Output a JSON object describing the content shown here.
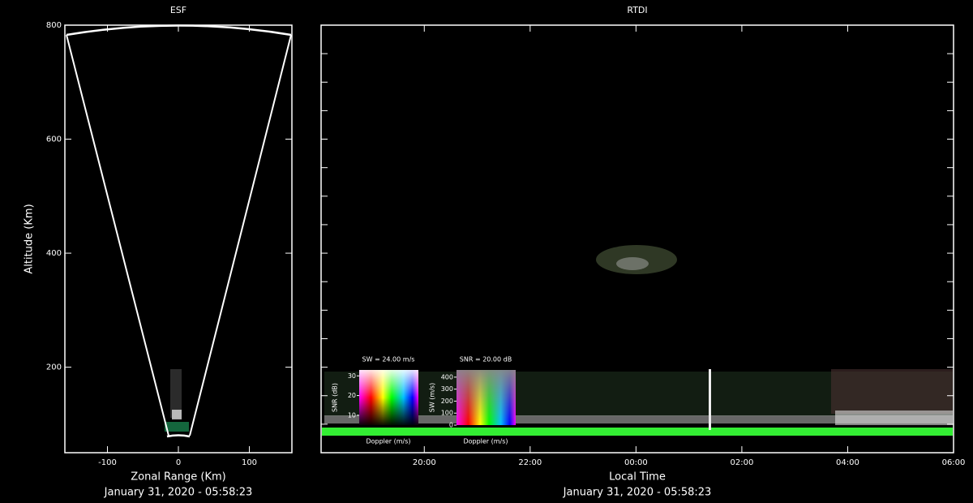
{
  "chart_data": [
    {
      "type": "sector",
      "title": "ESF",
      "xlabel": "Zonal Range (Km)",
      "ylabel": "Altitude (Km)",
      "xlim": [
        -160,
        160
      ],
      "xticks": [
        -100,
        0,
        100
      ],
      "ylim": [
        50,
        800
      ],
      "yticks": [
        200,
        400,
        600,
        800
      ],
      "date": "January 31, 2020 - 05:58:23"
    },
    {
      "type": "rtdi",
      "title": "RTDI",
      "xlabel": "Local Time",
      "xlim": [
        18.05,
        30
      ],
      "xticks": [
        {
          "value": 20,
          "label": "20:00"
        },
        {
          "value": 22,
          "label": "22:00"
        },
        {
          "value": 24,
          "label": "00:00"
        },
        {
          "value": 26,
          "label": "02:00"
        },
        {
          "value": 28,
          "label": "04:00"
        },
        {
          "value": 30,
          "label": "06:00"
        }
      ],
      "ylim": [
        50,
        800
      ],
      "yticks": [
        100,
        150,
        200,
        250,
        300,
        350,
        400,
        450,
        500,
        550,
        600,
        650,
        700,
        750,
        800
      ],
      "date": "January 31, 2020 - 05:58:23",
      "legends": [
        {
          "title": "SW = 24.00 m/s",
          "ylabel": "SNR (dB)",
          "xlabel": "Doppler (m/s)",
          "ylim": [
            5,
            33
          ],
          "yticks": [
            10,
            20,
            30
          ]
        },
        {
          "title": "SNR = 20.00 dB",
          "ylabel": "SW (m/s)",
          "xlabel": "Doppler (m/s)",
          "ylim": [
            0,
            460
          ],
          "yticks": [
            0,
            100,
            200,
            300,
            400
          ]
        }
      ]
    }
  ]
}
